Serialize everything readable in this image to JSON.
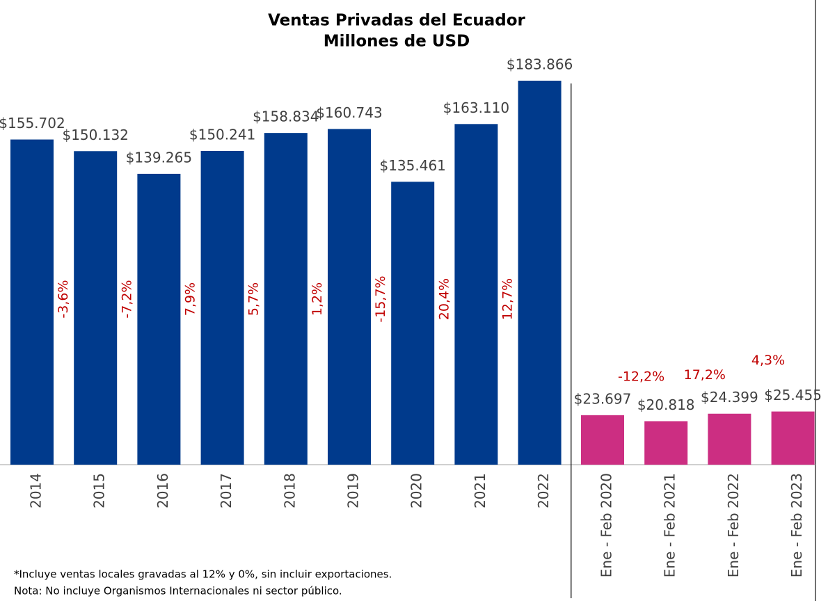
{
  "chart_data": {
    "type": "bar",
    "title": "Ventas Privadas del Ecuador",
    "subtitle": "Millones de USD",
    "groups": [
      {
        "categories": [
          "2014",
          "2015",
          "2016",
          "2017",
          "2018",
          "2019",
          "2020",
          "2021",
          "2022"
        ],
        "values": [
          155702,
          150132,
          139265,
          150241,
          158834,
          160743,
          135461,
          163110,
          183866
        ],
        "value_labels": [
          "$155.702",
          "$150.132",
          "$139.265",
          "$150.241",
          "$158.834",
          "$160.743",
          "$135.461",
          "$163.110",
          "$183.866"
        ],
        "changes": [
          "-3,6%",
          "-7,2%",
          "7,9%",
          "5,7%",
          "1,2%",
          "-15,7%",
          "20,4%",
          "12,7%"
        ],
        "color": "#003a8c",
        "change_orientation": "vertical"
      },
      {
        "categories": [
          "Ene - Feb 2020",
          "Ene - Feb 2021",
          "Ene - Feb 2022",
          "Ene - Feb 2023"
        ],
        "values": [
          23697,
          20818,
          24399,
          25455
        ],
        "value_labels": [
          "$23.697",
          "$20.818",
          "$24.399",
          "$25.455"
        ],
        "changes": [
          "-12,2%",
          "17,2%",
          "4,3%"
        ],
        "color": "#cc2e82",
        "change_orientation": "horizontal"
      }
    ],
    "change_color": "#c00000",
    "notes": [
      "*Incluye ventas locales gravadas al 12% y 0%, sin incluir exportaciones.",
      "Nota: No incluye Organismos Internacionales ni sector público."
    ]
  }
}
